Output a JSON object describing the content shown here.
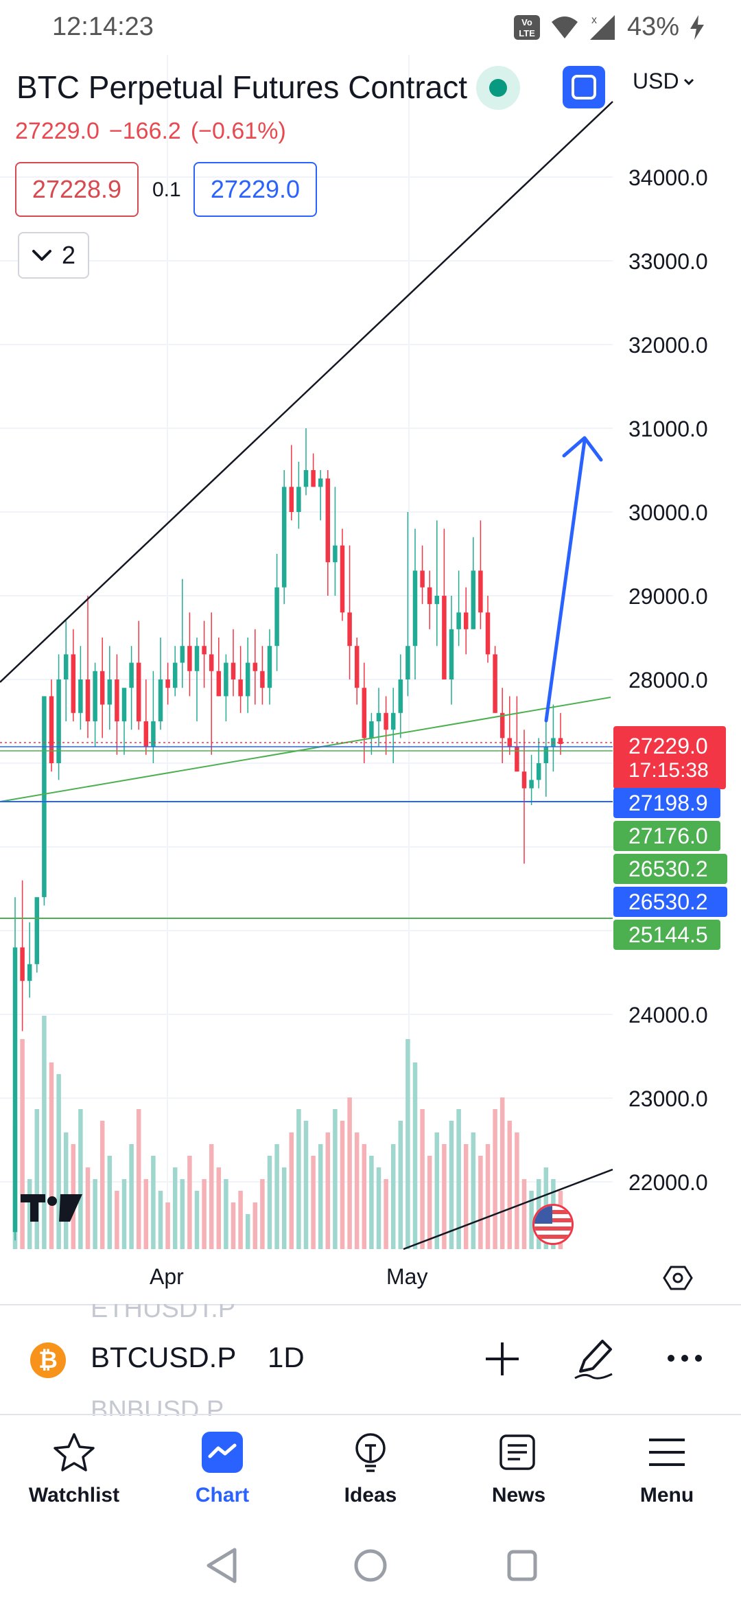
{
  "status_bar": {
    "time": "12:14:23",
    "battery_percent": "43%",
    "icons": [
      "volte-icon",
      "wifi-icon",
      "signal-icon",
      "charging-icon"
    ]
  },
  "header": {
    "title": "BTC Perpetual Futures Contract",
    "last_price": "27229.0",
    "change": "−166.2",
    "change_percent": "(−0.61%)",
    "sell_price": "27228.9",
    "spread": "0.1",
    "buy_price": "27229.0",
    "collapse_count": "2",
    "currency": "USD"
  },
  "chart_data": {
    "type": "candlestick",
    "y_axis_labels": [
      "34000.0",
      "33000.0",
      "32000.0",
      "31000.0",
      "30000.0",
      "29000.0",
      "28000.0",
      "24000.0",
      "23000.0",
      "22000.0"
    ],
    "x_axis_labels": [
      "Apr",
      "May"
    ],
    "price_tags": [
      {
        "value": "27229.0",
        "sub": "17:15:38",
        "color": "#f23645"
      },
      {
        "value": "27198.9",
        "color": "#2962ff"
      },
      {
        "value": "27176.0",
        "color": "#4caf50"
      },
      {
        "value": "26530.2",
        "color": "#4caf50"
      },
      {
        "value": "26530.2",
        "color": "#2962ff"
      },
      {
        "value": "25144.5",
        "color": "#4caf50"
      }
    ],
    "colors": {
      "up": "#22ab94",
      "down": "#f23645",
      "volume_up": "#9fd6ce",
      "volume_down": "#f5b1b5"
    }
  },
  "symbol_bar": {
    "symbol": "BTCUSD.P",
    "timeframe": "1D",
    "ghost_prev": "ETHUSDT.P",
    "ghost_next": "BNBUSD.P",
    "coin_glyph": "₿"
  },
  "bottom_nav": [
    {
      "label": "Watchlist",
      "icon": "star-icon"
    },
    {
      "label": "Chart",
      "icon": "chart-icon",
      "active": true
    },
    {
      "label": "Ideas",
      "icon": "lightbulb-icon"
    },
    {
      "label": "News",
      "icon": "news-icon"
    },
    {
      "label": "Menu",
      "icon": "menu-icon"
    }
  ]
}
